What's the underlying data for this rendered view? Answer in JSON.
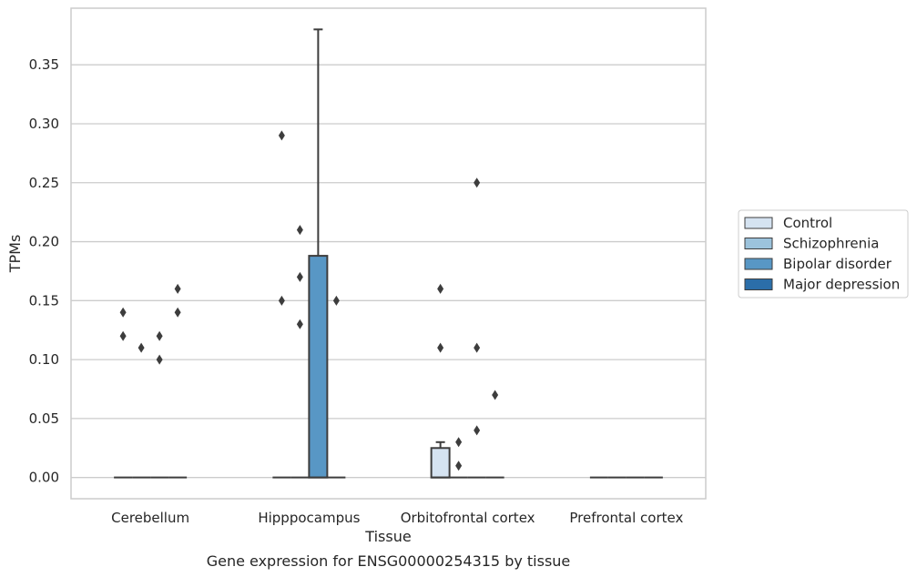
{
  "chart_data": {
    "type": "box",
    "title": "",
    "caption": "Gene expression for ENSG00000254315 by tissue",
    "xlabel": "Tissue",
    "ylabel": "TPMs",
    "ylim": [
      -0.018,
      0.398
    ],
    "yticks": [
      0.0,
      0.05,
      0.1,
      0.15,
      0.2,
      0.25,
      0.3,
      0.35
    ],
    "ytick_labels": [
      "0.00",
      "0.05",
      "0.10",
      "0.15",
      "0.20",
      "0.25",
      "0.30",
      "0.35"
    ],
    "grid": "horizontal",
    "legend_position": "right",
    "categories": [
      "Cerebellum",
      "Hipppocampus",
      "Orbitofrontal cortex",
      "Prefrontal cortex"
    ],
    "series": [
      {
        "name": "Control",
        "color": "#d5e3f1"
      },
      {
        "name": "Schizophrenia",
        "color": "#9cc3dc"
      },
      {
        "name": "Bipolar disorder",
        "color": "#5897c5"
      },
      {
        "name": "Major depression",
        "color": "#2b6ea9"
      }
    ],
    "boxes": [
      {
        "category": 0,
        "series": 0,
        "q1": 0,
        "median": 0,
        "q3": 0,
        "whislo": 0,
        "whishi": 0,
        "fliers": [
          0.12,
          0.14
        ]
      },
      {
        "category": 0,
        "series": 1,
        "q1": 0,
        "median": 0,
        "q3": 0,
        "whislo": 0,
        "whishi": 0,
        "fliers": [
          0.11
        ]
      },
      {
        "category": 0,
        "series": 2,
        "q1": 0,
        "median": 0,
        "q3": 0,
        "whislo": 0,
        "whishi": 0,
        "fliers": [
          0.1,
          0.12
        ]
      },
      {
        "category": 0,
        "series": 3,
        "q1": 0,
        "median": 0,
        "q3": 0,
        "whislo": 0,
        "whishi": 0,
        "fliers": [
          0.14,
          0.16
        ]
      },
      {
        "category": 1,
        "series": 0,
        "q1": 0,
        "median": 0,
        "q3": 0,
        "whislo": 0,
        "whishi": 0,
        "fliers": [
          0.15,
          0.29
        ]
      },
      {
        "category": 1,
        "series": 1,
        "q1": 0,
        "median": 0,
        "q3": 0,
        "whislo": 0,
        "whishi": 0,
        "fliers": [
          0.13,
          0.17,
          0.21
        ]
      },
      {
        "category": 1,
        "series": 2,
        "q1": 0,
        "median": 0,
        "q3": 0.188,
        "whislo": 0,
        "whishi": 0.38,
        "fliers": []
      },
      {
        "category": 1,
        "series": 3,
        "q1": 0,
        "median": 0,
        "q3": 0,
        "whislo": 0,
        "whishi": 0,
        "fliers": [
          0.15
        ]
      },
      {
        "category": 2,
        "series": 0,
        "q1": 0,
        "median": 0,
        "q3": 0.025,
        "whislo": 0,
        "whishi": 0.03,
        "fliers": [
          0.11,
          0.16
        ]
      },
      {
        "category": 2,
        "series": 1,
        "q1": 0,
        "median": 0,
        "q3": 0,
        "whislo": 0,
        "whishi": 0,
        "fliers": [
          0.01,
          0.03
        ]
      },
      {
        "category": 2,
        "series": 2,
        "q1": 0,
        "median": 0,
        "q3": 0,
        "whislo": 0,
        "whishi": 0,
        "fliers": [
          0.04,
          0.11,
          0.25
        ]
      },
      {
        "category": 2,
        "series": 3,
        "q1": 0,
        "median": 0,
        "q3": 0,
        "whislo": 0,
        "whishi": 0,
        "fliers": [
          0.07
        ]
      },
      {
        "category": 3,
        "series": 0,
        "q1": 0,
        "median": 0,
        "q3": 0,
        "whislo": 0,
        "whishi": 0,
        "fliers": []
      },
      {
        "category": 3,
        "series": 1,
        "q1": 0,
        "median": 0,
        "q3": 0,
        "whislo": 0,
        "whishi": 0,
        "fliers": []
      },
      {
        "category": 3,
        "series": 2,
        "q1": 0,
        "median": 0,
        "q3": 0,
        "whislo": 0,
        "whishi": 0,
        "fliers": []
      },
      {
        "category": 3,
        "series": 3,
        "q1": 0,
        "median": 0,
        "q3": 0,
        "whislo": 0,
        "whishi": 0,
        "fliers": []
      }
    ]
  }
}
